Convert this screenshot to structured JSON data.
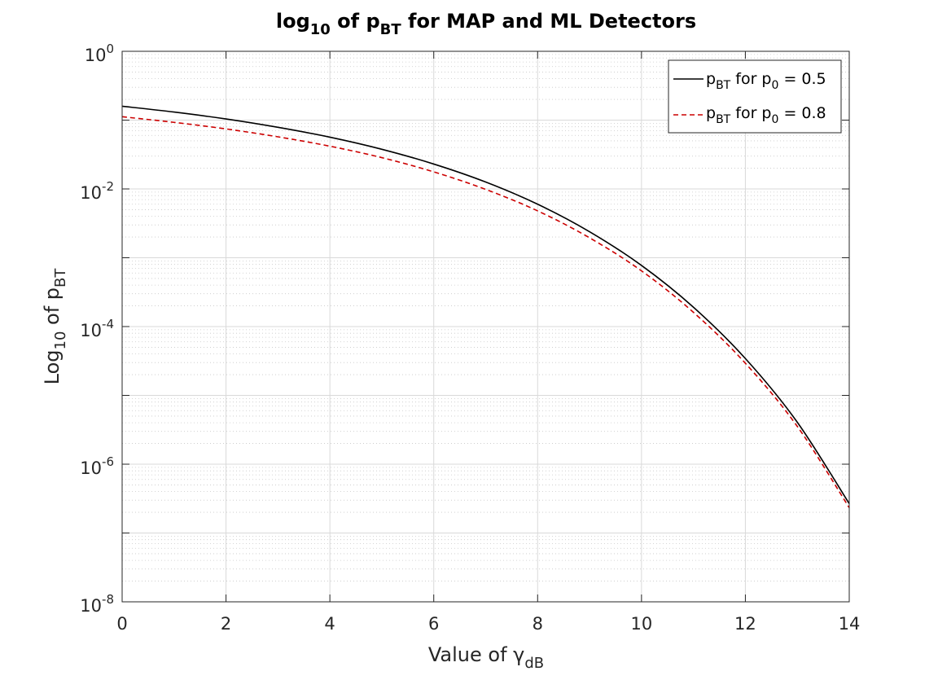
{
  "chart_data": {
    "type": "line",
    "title": {
      "prefix": "log",
      "prefix_sub": "10",
      "middle": " of p",
      "middle_sub": "BT",
      "suffix": " for MAP and ML Detectors"
    },
    "xlabel": {
      "text": "Value of γ",
      "sub": "dB"
    },
    "ylabel": {
      "prefix": "Log",
      "prefix_sub": "10",
      "middle": " of p",
      "middle_sub": "BT"
    },
    "x_ticks": [
      "0",
      "2",
      "4",
      "6",
      "8",
      "10",
      "12",
      "14"
    ],
    "y_ticks": [
      {
        "base": "10",
        "exp": "0"
      },
      {
        "base": "10",
        "exp": "-2"
      },
      {
        "base": "10",
        "exp": "-4"
      },
      {
        "base": "10",
        "exp": "-6"
      },
      {
        "base": "10",
        "exp": "-8"
      }
    ],
    "xlim": [
      0,
      14
    ],
    "ylim": [
      1e-08,
      1
    ],
    "yscale": "log",
    "grid": true,
    "minor_grid": true,
    "legend_position": "top-right",
    "x": [
      0,
      1,
      2,
      3,
      4,
      5,
      6,
      7,
      8,
      9,
      10,
      11,
      12,
      13,
      14
    ],
    "series": [
      {
        "name": {
          "p": "p",
          "p_sub": "BT",
          "mid": " for p",
          "mid_sub": "0",
          "val": " = 0.5"
        },
        "color": "#000000",
        "style": "solid",
        "values": [
          0.159,
          0.131,
          0.104,
          0.0786,
          0.0565,
          0.0377,
          0.023,
          0.0126,
          0.006,
          0.00239,
          0.000773,
          0.000191,
          3.43e-05,
          4.07e-06,
          2.67e-07
        ]
      },
      {
        "name": {
          "p": "p",
          "p_sub": "BT",
          "mid": " for p",
          "mid_sub": "0",
          "val": " = 0.8"
        },
        "color": "#cc0000",
        "style": "dashed",
        "values": [
          0.112,
          0.0928,
          0.0745,
          0.0572,
          0.0418,
          0.0285,
          0.0177,
          0.00985,
          0.0048,
          0.00195,
          0.000645,
          0.000161,
          2.93e-05,
          3.54e-06,
          2.33e-07
        ]
      }
    ]
  }
}
